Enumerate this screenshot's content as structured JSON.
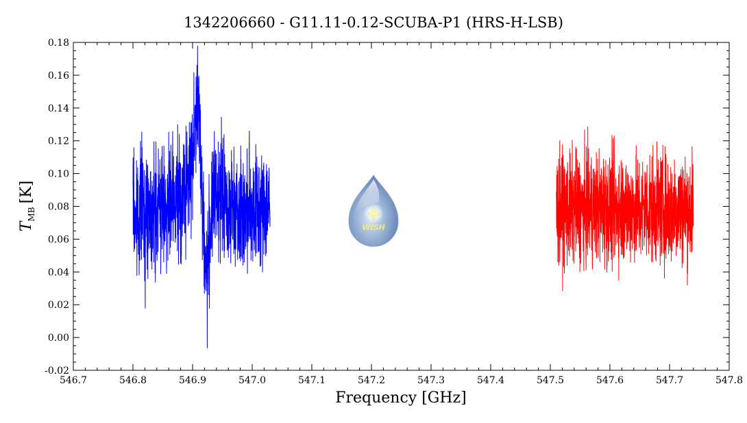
{
  "chart_data": {
    "type": "line",
    "title": "1342206660 - G11.11-0.12-SCUBA-P1 (HRS-H-LSB)",
    "xlabel": "Frequency [GHz]",
    "ylabel": {
      "main": "T",
      "subscript": "MB",
      "unit": "[K]"
    },
    "xlim": [
      546.7,
      547.8
    ],
    "ylim": [
      -0.02,
      0.18
    ],
    "xticks": [
      "546.7",
      "546.8",
      "546.9",
      "547.0",
      "547.1",
      "547.2",
      "547.3",
      "547.4",
      "547.5",
      "547.6",
      "547.7",
      "547.8"
    ],
    "yticks": [
      "-0.02",
      "0.00",
      "0.02",
      "0.04",
      "0.06",
      "0.08",
      "0.10",
      "0.12",
      "0.14",
      "0.16",
      "0.18"
    ],
    "grid": false,
    "series": [
      {
        "color": "#0000ff",
        "x": [
          546.8,
          546.805,
          546.81,
          546.815,
          546.82,
          546.825,
          546.83,
          546.835,
          546.84,
          546.845,
          546.85,
          546.855,
          546.86,
          546.865,
          546.87,
          546.875,
          546.88,
          546.885,
          546.89,
          546.895,
          546.9,
          546.903,
          546.906,
          546.909,
          546.912,
          546.915,
          546.918,
          546.921,
          546.924,
          546.927,
          546.93,
          546.935,
          546.94,
          546.945,
          546.95,
          546.955,
          546.96,
          546.965,
          546.97,
          546.975,
          546.98,
          546.985,
          546.99,
          546.995,
          547.0,
          547.005,
          547.01,
          547.015,
          547.02,
          547.025,
          547.03
        ],
        "y": [
          0.08,
          0.072,
          0.078,
          0.085,
          0.07,
          0.082,
          0.076,
          0.08,
          0.074,
          0.084,
          0.078,
          0.082,
          0.076,
          0.081,
          0.079,
          0.086,
          0.083,
          0.088,
          0.092,
          0.1,
          0.112,
          0.125,
          0.138,
          0.14,
          0.128,
          0.1,
          0.068,
          0.045,
          0.04,
          0.052,
          0.07,
          0.082,
          0.09,
          0.088,
          0.084,
          0.08,
          0.078,
          0.081,
          0.079,
          0.082,
          0.077,
          0.08,
          0.075,
          0.079,
          0.081,
          0.078,
          0.08,
          0.076,
          0.079,
          0.08,
          0.078
        ],
        "noise": 0.018
      },
      {
        "color": "#ff0000",
        "x": [
          547.51,
          547.52,
          547.53,
          547.54,
          547.55,
          547.56,
          547.57,
          547.58,
          547.59,
          547.6,
          547.61,
          547.62,
          547.63,
          547.64,
          547.65,
          547.66,
          547.67,
          547.68,
          547.69,
          547.7,
          547.71,
          547.72,
          547.73,
          547.74
        ],
        "y": [
          0.078,
          0.079,
          0.077,
          0.08,
          0.078,
          0.079,
          0.078,
          0.08,
          0.079,
          0.078,
          0.079,
          0.08,
          0.078,
          0.079,
          0.077,
          0.079,
          0.08,
          0.078,
          0.079,
          0.078,
          0.08,
          0.079,
          0.078,
          0.079
        ],
        "noise": 0.017
      }
    ],
    "logo_text": "WISH"
  }
}
